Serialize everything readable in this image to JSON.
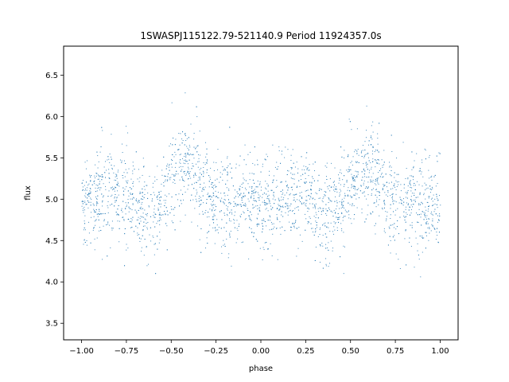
{
  "chart_data": {
    "type": "scatter",
    "title": "1SWASPJ115122.79-521140.9 Period 11924357.0s",
    "xlabel": "phase",
    "ylabel": "flux",
    "xlim": [
      -1.1,
      1.1
    ],
    "ylim": [
      3.3,
      6.85
    ],
    "xticks": [
      -1.0,
      -0.75,
      -0.5,
      -0.25,
      0.0,
      0.25,
      0.5,
      0.75,
      1.0
    ],
    "xtick_labels": [
      "−1.00",
      "−0.75",
      "−0.50",
      "−0.25",
      "0.00",
      "0.25",
      "0.50",
      "0.75",
      "1.00"
    ],
    "yticks": [
      3.5,
      4.0,
      4.5,
      5.0,
      5.5,
      6.0,
      6.5
    ],
    "ytick_labels": [
      "3.5",
      "4.0",
      "4.5",
      "5.0",
      "5.5",
      "6.0",
      "6.5"
    ],
    "grid": false,
    "legend": "none",
    "marker_color": "#1f77b4",
    "series": [
      {
        "x": [
          -1.0,
          -0.95,
          -0.9,
          -0.85,
          -0.8,
          -0.75,
          -0.7,
          -0.65,
          -0.6,
          -0.55,
          -0.5,
          -0.45,
          -0.4,
          -0.35,
          -0.3,
          -0.25,
          -0.2,
          -0.15,
          -0.1,
          -0.05,
          0.0,
          0.05,
          0.1,
          0.15,
          0.2,
          0.25,
          0.3,
          0.35,
          0.4,
          0.45,
          0.5,
          0.55,
          0.6,
          0.65,
          0.7,
          0.75,
          0.8,
          0.85,
          0.9,
          0.95,
          1.0
        ],
        "y": [
          4.95,
          5.0,
          5.05,
          5.1,
          5.1,
          5.05,
          4.9,
          4.8,
          4.85,
          5.0,
          5.2,
          5.35,
          5.45,
          5.3,
          5.05,
          4.95,
          4.95,
          5.0,
          5.0,
          4.95,
          4.95,
          5.0,
          5.05,
          5.1,
          5.1,
          5.05,
          4.9,
          4.8,
          4.85,
          5.0,
          5.2,
          5.35,
          5.45,
          5.3,
          5.05,
          4.95,
          4.95,
          5.0,
          5.0,
          4.95,
          4.95
        ]
      }
    ]
  }
}
